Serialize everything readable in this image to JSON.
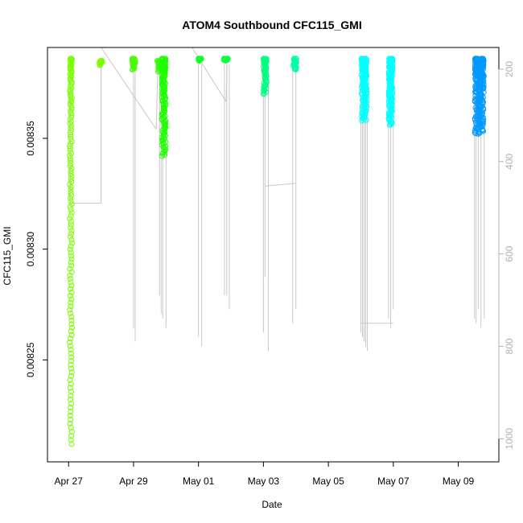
{
  "chart_data": {
    "type": "scatter",
    "title": "ATOM4 Southbound CFC115_GMI",
    "xlabel": "Date",
    "ylabel": "CFC115_GMI",
    "x_ticks": [
      {
        "label": "Apr 27",
        "day": 27.0
      },
      {
        "label": "Apr 29",
        "day": 29.0
      },
      {
        "label": "May 01",
        "day": 31.0
      },
      {
        "label": "May 03",
        "day": 33.0
      },
      {
        "label": "May 05",
        "day": 35.0
      },
      {
        "label": "May 07",
        "day": 37.0
      },
      {
        "label": "May 09",
        "day": 39.0
      }
    ],
    "xlim_days": [
      26.35,
      40.25
    ],
    "y_ticks": [
      {
        "label": "0.00825",
        "value": 0.00825
      },
      {
        "label": "0.00830",
        "value": 0.0083
      },
      {
        "label": "0.00835",
        "value": 0.00835
      }
    ],
    "ylim": [
      0.008204,
      0.008391
    ],
    "y2_ticks": [
      {
        "label": "200",
        "value": 200
      },
      {
        "label": "400",
        "value": 400
      },
      {
        "label": "600",
        "value": 600
      },
      {
        "label": "800",
        "value": 800
      },
      {
        "label": "1000",
        "value": 1000
      }
    ],
    "y2lim": [
      1050,
      153
    ],
    "y2_color": "#b0b0b0",
    "grid": false,
    "legend": "none",
    "series": [
      {
        "color": "#7CFC00",
        "x_day": 27.07,
        "x_spread": 0.07,
        "y_top": 0.008386,
        "y_bottom": 0.008212,
        "n": 150
      },
      {
        "color": "#7CFC00",
        "x_day": 28.0,
        "x_spread": 0.1,
        "y_top": 0.008385,
        "y_bottom": 0.008383,
        "n": 12
      },
      {
        "color": "#4CFC00",
        "x_day": 29.0,
        "x_spread": 0.1,
        "y_top": 0.008386,
        "y_bottom": 0.008381,
        "n": 30
      },
      {
        "color": "#33FF00",
        "x_day": 29.78,
        "x_spread": 0.1,
        "y_top": 0.008385,
        "y_bottom": 0.00838,
        "n": 20
      },
      {
        "color": "#1EFF00",
        "x_day": 29.93,
        "x_spread": 0.12,
        "y_top": 0.008386,
        "y_bottom": 0.008342,
        "n": 140
      },
      {
        "color": "#10FF20",
        "x_day": 31.05,
        "x_spread": 0.1,
        "y_top": 0.008386,
        "y_bottom": 0.008385,
        "n": 18
      },
      {
        "color": "#10FF40",
        "x_day": 31.85,
        "x_spread": 0.14,
        "y_top": 0.008386,
        "y_bottom": 0.008385,
        "n": 24
      },
      {
        "color": "#00FF80",
        "x_day": 33.05,
        "x_spread": 0.1,
        "y_top": 0.008386,
        "y_bottom": 0.00837,
        "n": 60
      },
      {
        "color": "#00FFA0",
        "x_day": 33.97,
        "x_spread": 0.1,
        "y_top": 0.008386,
        "y_bottom": 0.008381,
        "n": 30
      },
      {
        "color": "#00FFFF",
        "x_day": 36.1,
        "x_spread": 0.16,
        "y_top": 0.008386,
        "y_bottom": 0.008358,
        "n": 160
      },
      {
        "color": "#00FFFF",
        "x_day": 36.92,
        "x_spread": 0.12,
        "y_top": 0.008386,
        "y_bottom": 0.008356,
        "n": 150
      },
      {
        "color": "#0099FF",
        "x_day": 39.65,
        "x_spread": 0.28,
        "y_top": 0.008386,
        "y_bottom": 0.008352,
        "n": 260
      }
    ],
    "profiles": [
      {
        "x_day": 27.05,
        "p_top": 190,
        "p_bottom": 490
      },
      {
        "x_day": 28.0,
        "p_top": 190,
        "p_bottom": 490
      },
      {
        "x_day": 29.0,
        "p_top": 190,
        "p_bottom": 760
      },
      {
        "x_day": 29.05,
        "p_top": 190,
        "p_bottom": 790
      },
      {
        "x_day": 29.8,
        "p_top": 190,
        "p_bottom": 690
      },
      {
        "x_day": 29.85,
        "p_top": 190,
        "p_bottom": 730
      },
      {
        "x_day": 29.9,
        "p_top": 190,
        "p_bottom": 740
      },
      {
        "x_day": 30.0,
        "p_top": 190,
        "p_bottom": 760
      },
      {
        "x_day": 31.0,
        "p_top": 190,
        "p_bottom": 780
      },
      {
        "x_day": 31.1,
        "p_top": 190,
        "p_bottom": 800
      },
      {
        "x_day": 31.8,
        "p_top": 190,
        "p_bottom": 690
      },
      {
        "x_day": 31.87,
        "p_top": 190,
        "p_bottom": 690
      },
      {
        "x_day": 31.95,
        "p_top": 190,
        "p_bottom": 720
      },
      {
        "x_day": 33.0,
        "p_top": 190,
        "p_bottom": 770
      },
      {
        "x_day": 33.05,
        "p_top": 190,
        "p_bottom": 650
      },
      {
        "x_day": 33.15,
        "p_top": 190,
        "p_bottom": 810
      },
      {
        "x_day": 33.9,
        "p_top": 190,
        "p_bottom": 750
      },
      {
        "x_day": 34.0,
        "p_top": 190,
        "p_bottom": 720
      },
      {
        "x_day": 36.0,
        "p_top": 190,
        "p_bottom": 770
      },
      {
        "x_day": 36.05,
        "p_top": 190,
        "p_bottom": 780
      },
      {
        "x_day": 36.1,
        "p_top": 190,
        "p_bottom": 790
      },
      {
        "x_day": 36.15,
        "p_top": 190,
        "p_bottom": 800
      },
      {
        "x_day": 36.2,
        "p_top": 190,
        "p_bottom": 810
      },
      {
        "x_day": 36.85,
        "p_top": 190,
        "p_bottom": 740
      },
      {
        "x_day": 36.92,
        "p_top": 190,
        "p_bottom": 760
      },
      {
        "x_day": 37.0,
        "p_top": 190,
        "p_bottom": 720
      },
      {
        "x_day": 39.5,
        "p_top": 190,
        "p_bottom": 740
      },
      {
        "x_day": 39.55,
        "p_top": 190,
        "p_bottom": 750
      },
      {
        "x_day": 39.62,
        "p_top": 190,
        "p_bottom": 720
      },
      {
        "x_day": 39.7,
        "p_top": 190,
        "p_bottom": 760
      },
      {
        "x_day": 39.8,
        "p_top": 190,
        "p_bottom": 740
      }
    ],
    "connectors": [
      {
        "x1_day": 27.0,
        "p1": 490,
        "x2_day": 28.0,
        "p2": 490
      },
      {
        "x1_day": 28.0,
        "p1": 190,
        "x2_day": 28.0,
        "p2": 490
      },
      {
        "x1_day": 28.0,
        "p1": 153,
        "x2_day": 29.7,
        "p2": 330
      },
      {
        "x1_day": 29.7,
        "p1": 330,
        "x2_day": 29.75,
        "p2": 190
      },
      {
        "x1_day": 30.8,
        "p1": 153,
        "x2_day": 31.85,
        "p2": 270
      },
      {
        "x1_day": 31.85,
        "p1": 270,
        "x2_day": 31.88,
        "p2": 190
      },
      {
        "x1_day": 33.05,
        "p1": 453,
        "x2_day": 34.0,
        "p2": 447
      },
      {
        "x1_day": 36.0,
        "p1": 750,
        "x2_day": 37.0,
        "p2": 750
      }
    ]
  }
}
